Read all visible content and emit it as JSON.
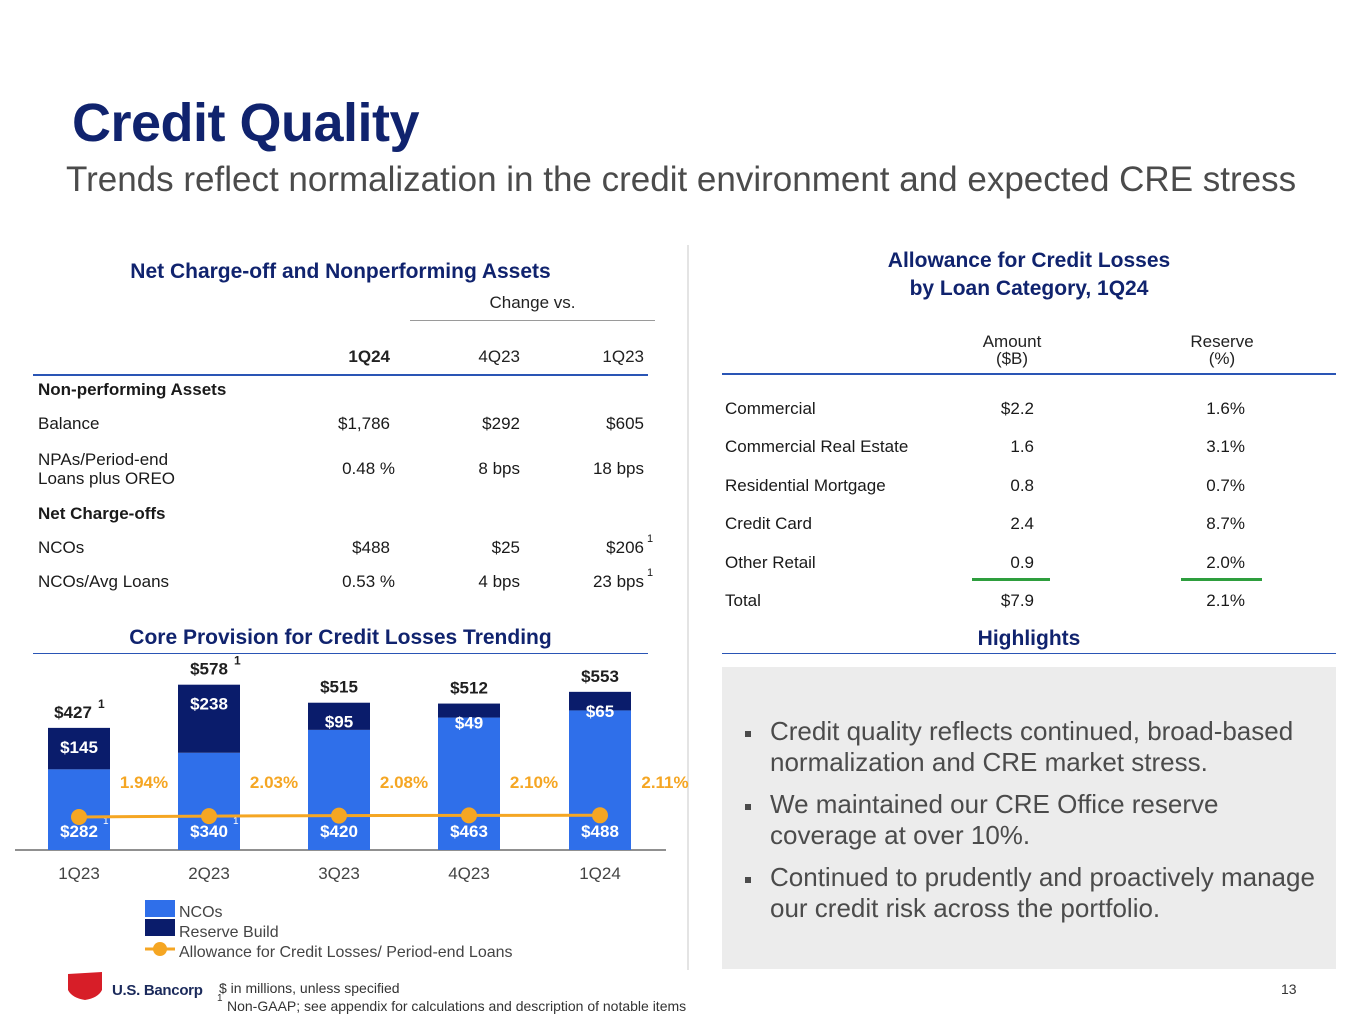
{
  "title": "Credit Quality",
  "subtitle": "Trends reflect normalization in the credit environment and expected CRE stress",
  "nco_table": {
    "heading": "Net Charge-off and Nonperforming Assets",
    "change_vs": "Change vs.",
    "columns": [
      "1Q24",
      "4Q23",
      "1Q23"
    ],
    "sections": {
      "npa_label": "Non-performing Assets",
      "nco_label": "Net Charge-offs"
    },
    "rows": [
      {
        "label": "Balance",
        "v1": "$1,786",
        "v2": "$292",
        "v3": "$605"
      },
      {
        "label": "NPAs/Period-end",
        "label2": "Loans plus OREO",
        "v1": "0.48 %",
        "v2": "8 bps",
        "v3": "18 bps"
      },
      {
        "label": "NCOs",
        "v1": "$488",
        "v2": "$25",
        "v3": "$206",
        "footnote": "1"
      },
      {
        "label": "NCOs/Avg Loans",
        "v1": "0.53 %",
        "v2": "4 bps",
        "v3": "23 bps",
        "footnote": "1"
      }
    ]
  },
  "chart_title": "Core Provision for Credit Losses Trending",
  "chart_data": {
    "type": "bar",
    "title": "Core Provision for Credit Losses Trending",
    "categories": [
      "1Q23",
      "2Q23",
      "3Q23",
      "4Q23",
      "1Q24"
    ],
    "series": [
      {
        "name": "NCOs",
        "values": [
          282,
          340,
          420,
          463,
          488
        ],
        "labels": [
          "$282",
          "$340",
          "$420",
          "$463",
          "$488"
        ],
        "footnotes": [
          "1",
          "1",
          "",
          "",
          ""
        ]
      },
      {
        "name": "Reserve Build",
        "values": [
          145,
          238,
          95,
          49,
          65
        ],
        "labels": [
          "$145",
          "$238",
          "$95",
          "$49",
          "$65"
        ]
      },
      {
        "name": "Allowance for Credit Losses/ Period-end Loans",
        "values": [
          1.94,
          2.03,
          2.08,
          2.1,
          2.11
        ],
        "labels": [
          "1.94%",
          "2.03%",
          "2.08%",
          "2.10%",
          "2.11%"
        ]
      }
    ],
    "totals": [
      427,
      578,
      515,
      512,
      553
    ],
    "total_labels": [
      "$427",
      "$578",
      "$515",
      "$512",
      "$553"
    ],
    "total_footnotes": [
      "1",
      "1",
      "",
      "",
      ""
    ],
    "colors": {
      "ncos": "#2f6fea",
      "reserve": "#0a1c6b",
      "allowance": "#f5a623"
    }
  },
  "legend": {
    "ncos": "NCOs",
    "reserve": "Reserve Build",
    "allowance": "Allowance for Credit Losses/ Period-end Loans"
  },
  "allowance": {
    "heading_line1": "Allowance for Credit Losses",
    "heading_line2": "by Loan Category, 1Q24",
    "col_amount_1": "Amount",
    "col_amount_2": "($B)",
    "col_reserve_1": "Reserve",
    "col_reserve_2": "(%)",
    "rows": [
      {
        "label": "Commercial",
        "amount": "$2.2",
        "reserve": "1.6%"
      },
      {
        "label": "Commercial Real Estate",
        "amount": "1.6",
        "reserve": "3.1%"
      },
      {
        "label": "Residential Mortgage",
        "amount": "0.8",
        "reserve": "0.7%"
      },
      {
        "label": "Credit Card",
        "amount": "2.4",
        "reserve": "8.7%"
      },
      {
        "label": "Other Retail",
        "amount": "0.9",
        "reserve": "2.0%"
      },
      {
        "label": "Total",
        "amount": "$7.9",
        "reserve": "2.1%"
      }
    ]
  },
  "highlights": {
    "heading": "Highlights",
    "bullets": [
      "Credit quality reflects continued, broad-based normalization and CRE market stress.",
      "We maintained our CRE Office reserve coverage at over 10%.",
      "Continued to prudently and proactively manage our credit risk across the portfolio."
    ]
  },
  "footer": {
    "logo": "U.S. Bancorp",
    "note1": "$ in millions, unless specified",
    "note2_sup": "1",
    "note2": "Non-GAAP; see appendix for calculations and description of notable items",
    "page": "13"
  },
  "colors": {
    "navy": "#10236e",
    "rule": "#2a55b5",
    "highlight_bg": "#ececec",
    "logo_red": "#d71e28"
  }
}
